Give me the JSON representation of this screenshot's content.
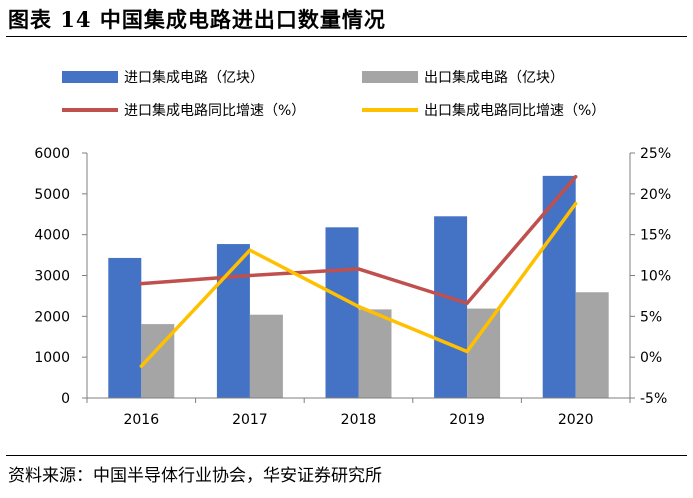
{
  "figure": {
    "title": "图表 14 中国集成电路进出口数量情况",
    "source": "资料来源：中国半导体行业协会，华安证券研究所"
  },
  "colors": {
    "import_bar": "#4472C4",
    "export_bar": "#A5A5A5",
    "import_growth_line": "#C0504D",
    "export_growth_line": "#FFC000",
    "axis": "#7f7f7f"
  },
  "chart_data": {
    "type": "bar",
    "categories": [
      "2016",
      "2017",
      "2018",
      "2019",
      "2020"
    ],
    "series": [
      {
        "name": "进口集成电路（亿块）",
        "type": "bar",
        "axis": "left",
        "values": [
          3430,
          3770,
          4180,
          4450,
          5440
        ]
      },
      {
        "name": "出口集成电路（亿块）",
        "type": "bar",
        "axis": "left",
        "values": [
          1810,
          2040,
          2170,
          2190,
          2590
        ]
      },
      {
        "name": "进口集成电路同比增速（%）",
        "type": "line",
        "axis": "right",
        "values": [
          9.0,
          10.0,
          10.8,
          6.6,
          22.1
        ]
      },
      {
        "name": "出口集成电路同比增速（%）",
        "type": "line",
        "axis": "right",
        "values": [
          -1.1,
          13.1,
          6.2,
          0.7,
          18.8
        ]
      }
    ],
    "left_axis": {
      "range": [
        0,
        6000
      ],
      "ticks": [
        0,
        1000,
        2000,
        3000,
        4000,
        5000,
        6000
      ],
      "tick_labels": [
        "0",
        "1000",
        "2000",
        "3000",
        "4000",
        "5000",
        "6000"
      ]
    },
    "right_axis": {
      "range": [
        -5,
        25
      ],
      "ticks": [
        -5,
        0,
        5,
        10,
        15,
        20,
        25
      ],
      "tick_labels": [
        "-5%",
        "0%",
        "5%",
        "10%",
        "15%",
        "20%",
        "25%"
      ]
    },
    "grid": false,
    "legend_position": "top"
  }
}
